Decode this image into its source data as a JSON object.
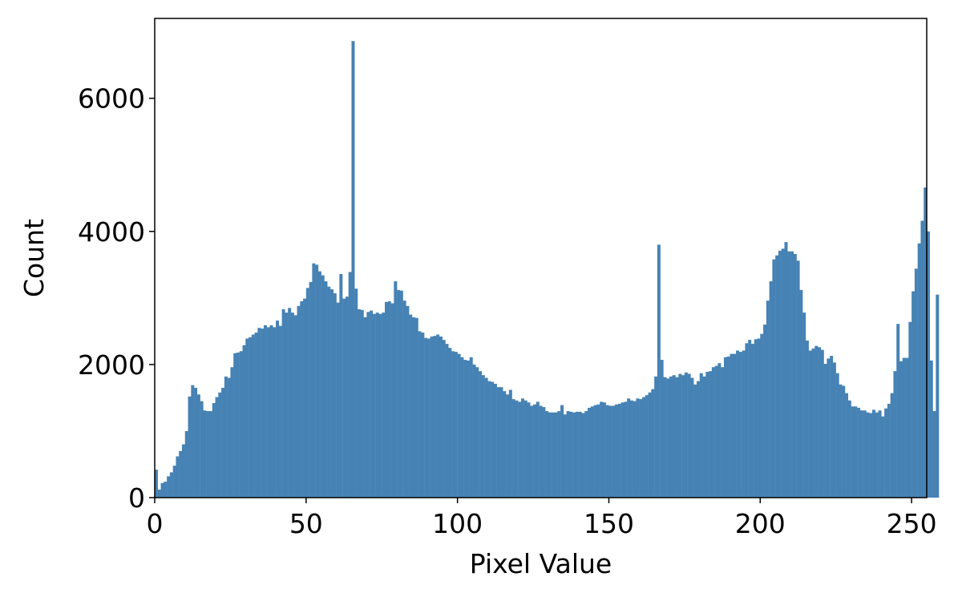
{
  "chart_data": {
    "type": "bar",
    "title": "",
    "xlabel": "Pixel Value",
    "ylabel": "Count",
    "xlim": [
      0,
      255
    ],
    "ylim": [
      0,
      7200
    ],
    "bar_color": "#4682b4",
    "grid": false,
    "x_ticks": [
      0,
      50,
      100,
      150,
      200,
      250
    ],
    "y_ticks": [
      0,
      2000,
      4000,
      6000
    ],
    "x_tick_labels": [
      "0",
      "50",
      "100",
      "150",
      "200",
      "250"
    ],
    "y_tick_labels": [
      "0",
      "2000",
      "4000",
      "6000"
    ],
    "bin_start": 0,
    "bin_width": 1,
    "values": [
      420,
      120,
      220,
      240,
      320,
      380,
      480,
      620,
      700,
      800,
      1000,
      1520,
      1690,
      1650,
      1550,
      1450,
      1310,
      1300,
      1300,
      1420,
      1510,
      1580,
      1650,
      1820,
      1800,
      1960,
      2170,
      2180,
      2200,
      2290,
      2390,
      2410,
      2450,
      2480,
      2550,
      2540,
      2590,
      2560,
      2590,
      2560,
      2660,
      2580,
      2830,
      2780,
      2850,
      2780,
      2740,
      2880,
      2950,
      2990,
      3150,
      3240,
      3520,
      3500,
      3400,
      3340,
      3250,
      3170,
      3130,
      3070,
      2930,
      3360,
      2990,
      3020,
      3390,
      6860,
      3140,
      2830,
      2820,
      2710,
      2790,
      2810,
      2760,
      2780,
      2760,
      2780,
      2940,
      2950,
      2920,
      3250,
      3120,
      3110,
      2960,
      2880,
      2750,
      2710,
      2700,
      2500,
      2480,
      2400,
      2390,
      2420,
      2430,
      2450,
      2420,
      2370,
      2310,
      2250,
      2200,
      2190,
      2160,
      2110,
      2070,
      2060,
      2110,
      2000,
      1960,
      1900,
      1840,
      1800,
      1750,
      1740,
      1710,
      1660,
      1660,
      1600,
      1550,
      1620,
      1480,
      1460,
      1440,
      1490,
      1460,
      1430,
      1380,
      1400,
      1440,
      1380,
      1360,
      1300,
      1280,
      1280,
      1280,
      1300,
      1390,
      1250,
      1300,
      1290,
      1280,
      1290,
      1290,
      1270,
      1300,
      1350,
      1370,
      1390,
      1400,
      1440,
      1430,
      1390,
      1380,
      1380,
      1400,
      1410,
      1430,
      1440,
      1490,
      1460,
      1450,
      1490,
      1480,
      1510,
      1540,
      1580,
      1630,
      1820,
      3800,
      2070,
      1810,
      1790,
      1820,
      1840,
      1810,
      1860,
      1840,
      1880,
      1860,
      1800,
      1700,
      1750,
      1870,
      1820,
      1890,
      1900,
      1960,
      1980,
      2020,
      1960,
      2110,
      2120,
      2160,
      2160,
      2210,
      2190,
      2210,
      2320,
      2370,
      2310,
      2380,
      2390,
      2460,
      2600,
      2960,
      3250,
      3580,
      3640,
      3710,
      3740,
      3840,
      3700,
      3700,
      3660,
      3560,
      3120,
      2780,
      2360,
      2210,
      2240,
      2280,
      2260,
      2220,
      2010,
      2090,
      2130,
      2030,
      1870,
      1700,
      1680,
      1570,
      1460,
      1370,
      1370,
      1350,
      1310,
      1310,
      1280,
      1270,
      1320,
      1280,
      1310,
      1220,
      1340,
      1410,
      1570,
      1900,
      2610,
      2050,
      2100,
      2100,
      2640,
      3100,
      3440,
      3820,
      4160,
      4660,
      4000,
      2060,
      1300,
      3050
    ]
  }
}
